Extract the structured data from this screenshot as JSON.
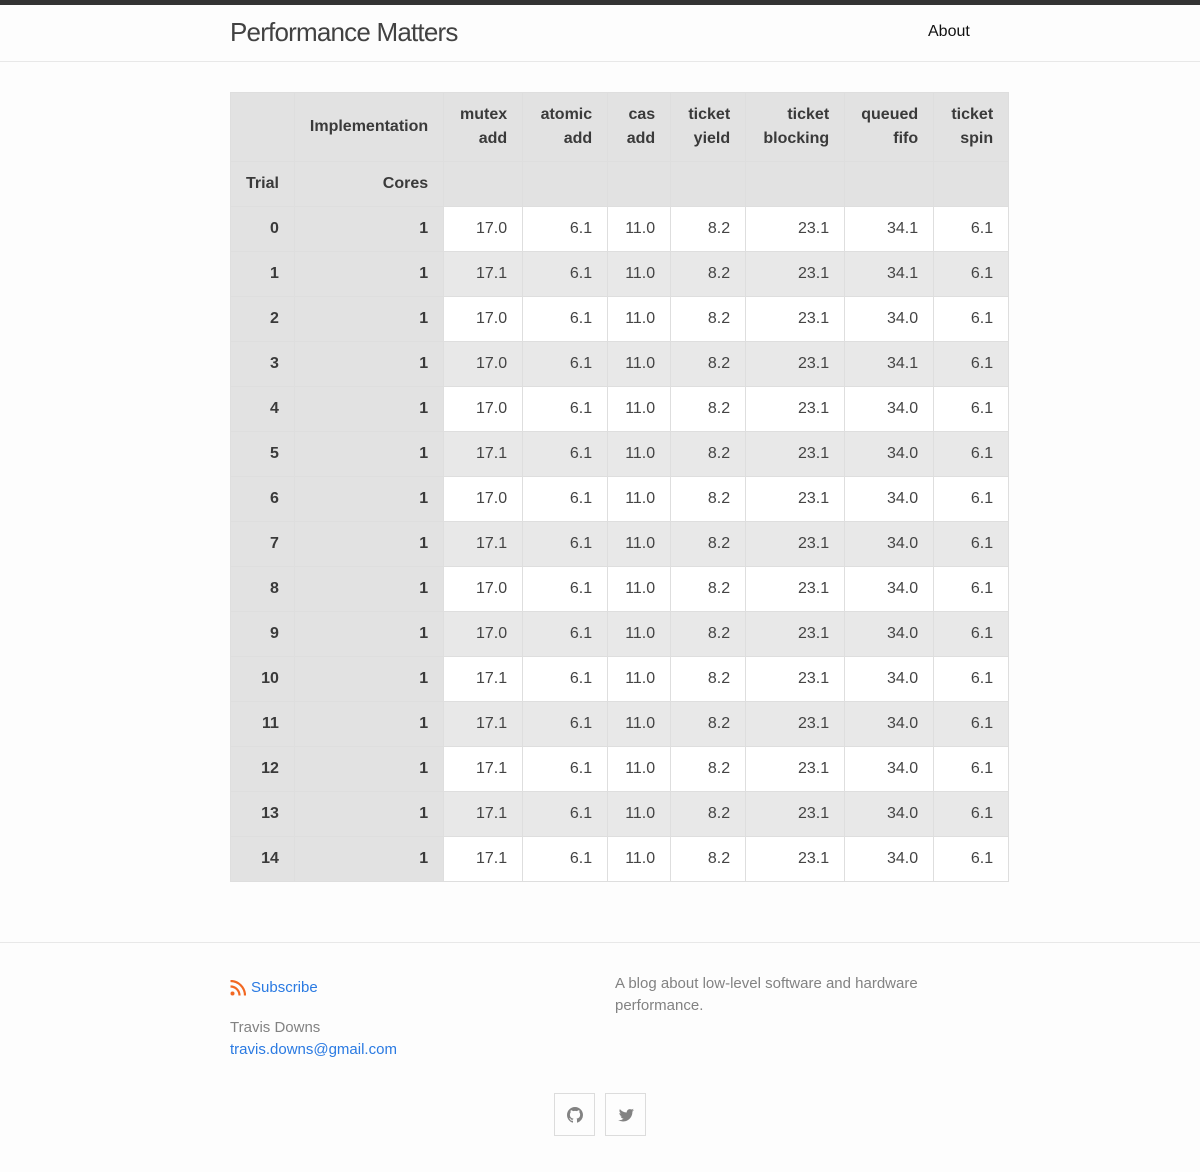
{
  "header": {
    "site_title": "Performance Matters",
    "nav": [
      {
        "label": "About"
      }
    ]
  },
  "table": {
    "header_row1": {
      "corner": "",
      "implementation": "Implementation",
      "columns": [
        "mutex add",
        "atomic add",
        "cas add",
        "ticket yield",
        "ticket blocking",
        "queued fifo",
        "ticket spin"
      ]
    },
    "header_row2": {
      "trial": "Trial",
      "cores": "Cores"
    },
    "rows": [
      {
        "trial": "0",
        "cores": "1",
        "values": [
          "17.0",
          "6.1",
          "11.0",
          "8.2",
          "23.1",
          "34.1",
          "6.1"
        ]
      },
      {
        "trial": "1",
        "cores": "1",
        "values": [
          "17.1",
          "6.1",
          "11.0",
          "8.2",
          "23.1",
          "34.1",
          "6.1"
        ]
      },
      {
        "trial": "2",
        "cores": "1",
        "values": [
          "17.0",
          "6.1",
          "11.0",
          "8.2",
          "23.1",
          "34.0",
          "6.1"
        ]
      },
      {
        "trial": "3",
        "cores": "1",
        "values": [
          "17.0",
          "6.1",
          "11.0",
          "8.2",
          "23.1",
          "34.1",
          "6.1"
        ]
      },
      {
        "trial": "4",
        "cores": "1",
        "values": [
          "17.0",
          "6.1",
          "11.0",
          "8.2",
          "23.1",
          "34.0",
          "6.1"
        ]
      },
      {
        "trial": "5",
        "cores": "1",
        "values": [
          "17.1",
          "6.1",
          "11.0",
          "8.2",
          "23.1",
          "34.0",
          "6.1"
        ]
      },
      {
        "trial": "6",
        "cores": "1",
        "values": [
          "17.0",
          "6.1",
          "11.0",
          "8.2",
          "23.1",
          "34.0",
          "6.1"
        ]
      },
      {
        "trial": "7",
        "cores": "1",
        "values": [
          "17.1",
          "6.1",
          "11.0",
          "8.2",
          "23.1",
          "34.0",
          "6.1"
        ]
      },
      {
        "trial": "8",
        "cores": "1",
        "values": [
          "17.0",
          "6.1",
          "11.0",
          "8.2",
          "23.1",
          "34.0",
          "6.1"
        ]
      },
      {
        "trial": "9",
        "cores": "1",
        "values": [
          "17.0",
          "6.1",
          "11.0",
          "8.2",
          "23.1",
          "34.0",
          "6.1"
        ]
      },
      {
        "trial": "10",
        "cores": "1",
        "values": [
          "17.1",
          "6.1",
          "11.0",
          "8.2",
          "23.1",
          "34.0",
          "6.1"
        ]
      },
      {
        "trial": "11",
        "cores": "1",
        "values": [
          "17.1",
          "6.1",
          "11.0",
          "8.2",
          "23.1",
          "34.0",
          "6.1"
        ]
      },
      {
        "trial": "12",
        "cores": "1",
        "values": [
          "17.1",
          "6.1",
          "11.0",
          "8.2",
          "23.1",
          "34.0",
          "6.1"
        ]
      },
      {
        "trial": "13",
        "cores": "1",
        "values": [
          "17.1",
          "6.1",
          "11.0",
          "8.2",
          "23.1",
          "34.0",
          "6.1"
        ]
      },
      {
        "trial": "14",
        "cores": "1",
        "values": [
          "17.1",
          "6.1",
          "11.0",
          "8.2",
          "23.1",
          "34.0",
          "6.1"
        ]
      }
    ]
  },
  "footer": {
    "subscribe_label": "Subscribe",
    "author_name": "Travis Downs",
    "author_email": "travis.downs@gmail.com",
    "description": "A blog about low-level software and hardware performance.",
    "social": [
      {
        "icon": "github-icon"
      },
      {
        "icon": "twitter-icon"
      }
    ]
  },
  "colors": {
    "link": "#2a7ae2",
    "rss": "#f26822",
    "header_cell": "#e2e2e2",
    "top_bar": "#333333"
  }
}
